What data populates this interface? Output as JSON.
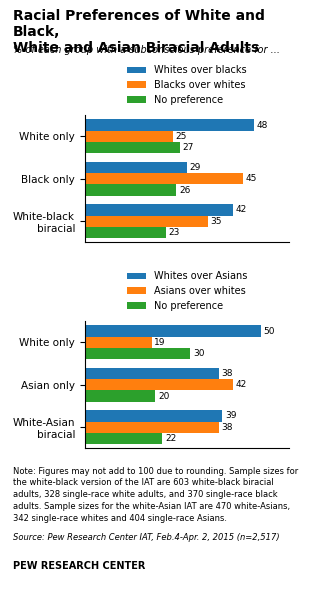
{
  "title": "Racial Preferences of White and Black,\nWhite and Asian Biracial Adults",
  "subtitle": "% of each group with a subconscious preference for ...",
  "annotations": [
    "Note: Figures may not add to 100 due to rounding. Sample sizes for\nthe white-black version of the IAT are 603 white-black biracial\nadults, 328 single-race white adults, and 370 single-race black\nadults. Sample sizes for the white-Asian IAT are 470 white-Asians,\n342 single-race whites and 404 single-race Asians.",
    "Source: Pew Research Center IAT, Feb.4-Apr. 2, 2015 (n=2,517)",
    "PEW RESEARCH CENTER"
  ],
  "chart_data": [
    {
      "type": "bar",
      "orientation": "horizontal",
      "categories": [
        "White only",
        "Black only",
        "White-black\nbiracial"
      ],
      "series": [
        {
          "name": "Whites over blacks",
          "values": [
            48,
            29,
            42
          ]
        },
        {
          "name": "Blacks over whites",
          "values": [
            25,
            45,
            35
          ]
        },
        {
          "name": "No preference",
          "values": [
            27,
            26,
            23
          ]
        }
      ],
      "xlim": [
        0,
        58
      ],
      "data_labels": true,
      "tick_labels": "y",
      "legend": "upper center"
    },
    {
      "type": "bar",
      "orientation": "horizontal",
      "categories": [
        "White only",
        "Asian only",
        "White-Asian\nbiracial"
      ],
      "series": [
        {
          "name": "Whites over Asians",
          "values": [
            50,
            38,
            39
          ]
        },
        {
          "name": "Asians over whites",
          "values": [
            19,
            42,
            38
          ]
        },
        {
          "name": "No preference",
          "values": [
            30,
            20,
            22
          ]
        }
      ],
      "xlim": [
        0,
        58
      ],
      "data_labels": true,
      "tick_labels": "y",
      "legend": "upper center"
    }
  ]
}
